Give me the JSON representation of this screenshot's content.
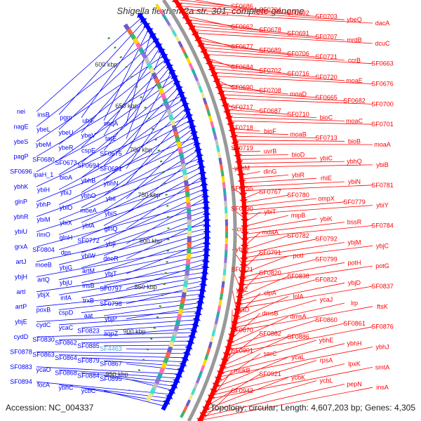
{
  "title": "Shigella flexneri 2a str. 301, complete genome",
  "footer": {
    "accession": "Accession: NC_004337",
    "topology": "Topology: circular; Length: 4,607,203 bp; Genes: 4,305"
  },
  "colors": {
    "forward_strand": "#ff0000",
    "reverse_strand": "#0000ff",
    "backbone": "#999999",
    "kbp_label": "#333333",
    "tick": "#2a8a2a",
    "highlight": "#4ab0d0"
  },
  "scale_labels": [
    "600 kbp",
    "650 kbp",
    "700 kbp",
    "750 kbp",
    "800 kbp",
    "850 kbp",
    "900 kbp",
    "950 kbp"
  ],
  "left_labels": [
    "nei",
    "insB",
    "pgm",
    "ubiF",
    "seqA",
    "nagE",
    "ybeL",
    "ybeU",
    "ybeV",
    "tatE",
    "ybeS",
    "ybeM",
    "ybeR",
    "cspE",
    "SF0675",
    "pagP",
    "SF0680",
    "SF0673",
    "SF0694",
    "SF0681",
    "SF0696",
    "ipaH_1",
    "bioA",
    "ybhB",
    "ybhN",
    "ybhK",
    "ybiH",
    "ybiJ",
    "ybhO",
    "ybiI",
    "glnP",
    "ybhP",
    "ybiO",
    "moeA",
    "ybiS",
    "ybhR",
    "ybiM",
    "ybiX",
    "ybiA",
    "glnQ",
    "ybiU",
    "rimO",
    "glnH",
    "SF0772",
    "ybjI",
    "grxA",
    "SF0804",
    "dps",
    "ybiW",
    "deoR",
    "artJ",
    "moeB",
    "ybjG",
    "artM",
    "ybjT",
    "ybjH",
    "artQ",
    "ybjU",
    "insB",
    "SF0797",
    "artI",
    "ybjX",
    "infA",
    "trxB",
    "SF0798",
    "artP",
    "poxB",
    "cspD",
    "aat",
    "ybjP",
    "ybjE",
    "cydC",
    "ycaC",
    "SF0823",
    "aqpZ",
    "cydD",
    "SF0830",
    "SF0862",
    "SF0885",
    "SF4463",
    "SF0878",
    "SF0863",
    "SF0864",
    "SF0879",
    "SF0867",
    "SF0883",
    "ycaO",
    "SF0868",
    "SF0884",
    "SF0895",
    "SF0894",
    "focA",
    "ybhC",
    "ycbC"
  ],
  "right_labels": [
    "SF0686",
    "SF0704",
    "SF0692",
    "SF0703",
    "ybeQ",
    "dacA",
    "SF0662",
    "SF0678",
    "SF0691",
    "SF0707",
    "mrdB",
    "dcuC",
    "SF0677",
    "SF0689",
    "SF0706",
    "SF0721",
    "ccrB",
    "SF0663",
    "SF0684",
    "SF0702",
    "SF0716",
    "SF0720",
    "moaE",
    "SF0676",
    "SF0690",
    "SF0708",
    "moaD",
    "SF0665",
    "SF0682",
    "SF0700",
    "SF0717",
    "SF0687",
    "SF0710",
    "bioC",
    "moaC",
    "SF0701",
    "SF0718",
    "bioF",
    "moaB",
    "SF0713",
    "bioB",
    "moaA",
    "SF0719",
    "uvrB",
    "bioD",
    "ybiC",
    "ybhQ",
    "ybiB",
    "ybhM",
    "dinG",
    "ybiR",
    "rhlE",
    "ybiN",
    "SF0781",
    "SF0755",
    "SF0767",
    "SF0780",
    "ompX",
    "SF0779",
    "ybiY",
    "SF0790",
    "ybiT",
    "mipB",
    "ybiK",
    "bssR",
    "SF0784",
    "cmr",
    "mdaA",
    "SF0782",
    "SF0792",
    "ybjM",
    "ybjC",
    "ybjO",
    "SF0791",
    "potI",
    "SF0799",
    "potH",
    "potG",
    "SF0821",
    "SF0820",
    "SF0838",
    "SF0822",
    "ybjD",
    "SF0837",
    "ybjZ",
    "clpA",
    "lolA",
    "ycaJ",
    "lrp",
    "ftsK",
    "ycaD",
    "dmsB",
    "dmsA",
    "SF0860",
    "SF0861",
    "SF0876",
    "SF0870",
    "SF0882",
    "SF0886",
    "ybhE",
    "ybhH",
    "ybhJ",
    "SF0901",
    "serC",
    "ycaL",
    "rpsA",
    "lpxK",
    "smtA",
    "mukB",
    "SF0921",
    "ycbK",
    "ycbL",
    "pepN",
    "insA",
    "SF0942"
  ]
}
